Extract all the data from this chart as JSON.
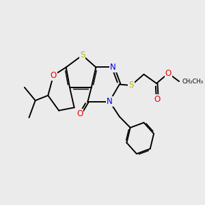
{
  "bg_color": "#ebebeb",
  "atom_colors": {
    "S": "#b8b800",
    "N": "#0000ee",
    "O": "#ee0000",
    "C": "#000000"
  },
  "bond_color": "#000000",
  "bond_width": 1.4,
  "figsize": [
    3.0,
    3.0
  ],
  "dpi": 100
}
